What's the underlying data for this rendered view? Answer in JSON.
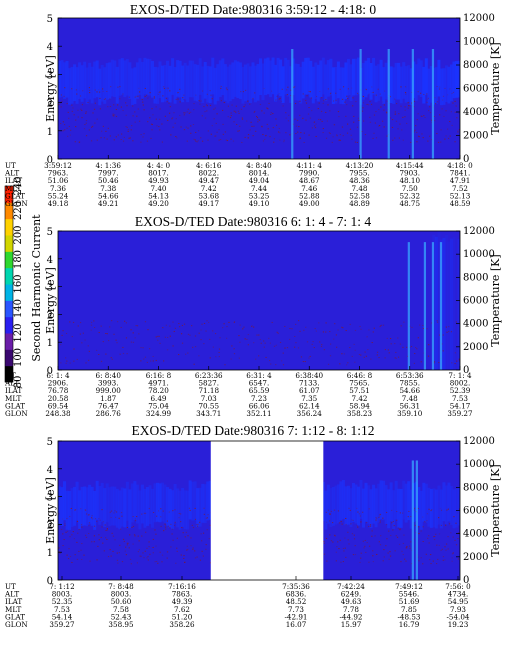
{
  "colors": {
    "background": "#2a1fd8",
    "band": "#1a34ff",
    "spike": "#38a8ff",
    "speck": "#7a1a3a",
    "gap": "#ffffff"
  },
  "colorbar": {
    "label": "Second Harmonic Current",
    "ticks": [
      "80",
      "100",
      "120",
      "140",
      "160",
      "180",
      "200",
      "220",
      "240"
    ],
    "colors": [
      "#000000",
      "#3a0870",
      "#6a1da8",
      "#2a1ff0",
      "#2a55ff",
      "#00b4e6",
      "#00d6b0",
      "#2fd82f",
      "#d2d600",
      "#ffd200",
      "#ff8a00",
      "#ff2000"
    ]
  },
  "chart_data": [
    {
      "type": "heatmap",
      "title": "EXOS-D/TED   Date:980316  3:59:12 - 4:18: 0",
      "ylabel": "Energy [eV]",
      "y2label": "Temperature [K]",
      "ylim": [
        0,
        5
      ],
      "y2lim": [
        0,
        12000
      ],
      "yticks": [
        "0",
        "1",
        "2",
        "3",
        "4",
        "5"
      ],
      "y2ticks": [
        "0",
        "2000",
        "4000",
        "6000",
        "8000",
        "10000",
        "12000"
      ],
      "gaps": [],
      "rows": [
        "UT",
        "ALT",
        "ILAT",
        "MLT",
        "GLAT",
        "GLON"
      ],
      "columns": [
        [
          "3:59:12",
          "7963.",
          "51.06",
          "7.36",
          "55.24",
          "49.18"
        ],
        [
          "4: 1:36",
          "7997.",
          "50.46",
          "7.38",
          "54.66",
          "49.21"
        ],
        [
          "4: 4: 0",
          "8017.",
          "49.93",
          "7.40",
          "54.13",
          "49.20"
        ],
        [
          "4: 6:16",
          "8022.",
          "49.47",
          "7.42",
          "53.68",
          "49.17"
        ],
        [
          "4: 8:40",
          "8014.",
          "49.04",
          "7.44",
          "53.25",
          "49.10"
        ],
        [
          "4:11: 4",
          "7990.",
          "48.67",
          "7.46",
          "52.88",
          "49.00"
        ],
        [
          "4:13:20",
          "7955.",
          "48.36",
          "7.48",
          "52.58",
          "48.89"
        ],
        [
          "4:15:44",
          "7903.",
          "48.10",
          "7.50",
          "52.32",
          "48.75"
        ],
        [
          "4:18: 0",
          "7841.",
          "47.91",
          "7.52",
          "52.13",
          "48.59"
        ]
      ]
    },
    {
      "type": "heatmap",
      "title": "EXOS-D/TED   Date:980316  6: 1: 4 - 7: 1: 4",
      "ylabel": "Energy [eV]",
      "y2label": "Temperature [K]",
      "ylim": [
        0,
        5
      ],
      "y2lim": [
        0,
        12000
      ],
      "yticks": [
        "0",
        "1",
        "2",
        "3",
        "4",
        "5"
      ],
      "y2ticks": [
        "0",
        "2000",
        "4000",
        "6000",
        "8000",
        "10000",
        "12000"
      ],
      "gaps": [],
      "rows": [
        "UT",
        "ALT",
        "ILAT",
        "MLT",
        "GLAT",
        "GLON"
      ],
      "columns": [
        [
          "6: 1: 4",
          "2906.",
          "76.78",
          "20.58",
          "69.54",
          "248.38"
        ],
        [
          "6: 8:40",
          "3993.",
          "999.00",
          "1.87",
          "76.47",
          "286.76"
        ],
        [
          "6:16: 8",
          "4971.",
          "78.20",
          "6.49",
          "75.04",
          "324.99"
        ],
        [
          "6:23:36",
          "5827.",
          "71.18",
          "7.03",
          "70.55",
          "343.71"
        ],
        [
          "6:31: 4",
          "6547.",
          "65.59",
          "7.23",
          "66.06",
          "352.11"
        ],
        [
          "6:38:40",
          "7133.",
          "61.07",
          "7.35",
          "62.14",
          "356.24"
        ],
        [
          "6:46: 8",
          "7565.",
          "57.51",
          "7.42",
          "58.94",
          "358.23"
        ],
        [
          "6:53:36",
          "7855.",
          "54.66",
          "7.48",
          "56.31",
          "359.10"
        ],
        [
          "7: 1: 4",
          "8002.",
          "52.39",
          "7.53",
          "54.17",
          "359.27"
        ]
      ]
    },
    {
      "type": "heatmap",
      "title": "EXOS-D/TED   Date:980316  7: 1:12 - 8: 1:12",
      "ylabel": "Energy [eV]",
      "y2label": "Temperature [K]",
      "ylim": [
        0,
        5
      ],
      "y2lim": [
        0,
        12000
      ],
      "yticks": [
        "0",
        "1",
        "2",
        "3",
        "4",
        "5"
      ],
      "y2ticks": [
        "0",
        "2000",
        "4000",
        "6000",
        "8000",
        "10000",
        "12000"
      ],
      "gaps": [
        [
          0.38,
          0.66
        ]
      ],
      "rows": [
        "UT",
        "ALT",
        "ILAT",
        "MLT",
        "GLAT",
        "GLON"
      ],
      "columns": [
        [
          "7: 1:12",
          "8003.",
          "52.35",
          "7.53",
          "54.14",
          "359.27"
        ],
        [
          "7: 8:48",
          "8003.",
          "50.60",
          "7.58",
          "52.43",
          "358.95"
        ],
        [
          "7:16:16",
          "7863.",
          "49.39",
          "7.62",
          "51.20",
          "358.26"
        ],
        [
          "7:35:36",
          "6836.",
          "48.52",
          "7.73",
          "-42.91",
          "16.07"
        ],
        [
          "7:42:24",
          "6249.",
          "49.63",
          "7.78",
          "-44.92",
          "15.97"
        ],
        [
          "7:49:12",
          "5546.",
          "51.69",
          "7.85",
          "-48.53",
          "16.79"
        ],
        [
          "7:56: 0",
          "4734.",
          "54.95",
          "7.93",
          "-54.04",
          "19.23"
        ]
      ]
    }
  ]
}
